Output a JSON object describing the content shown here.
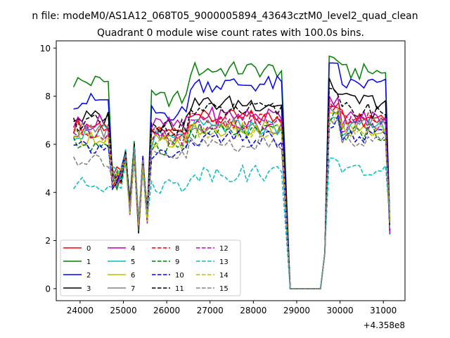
{
  "figure": {
    "title_line1": "n file: modeM0/AS1A12_068T05_9000005894_43643cztM0_level2_quad_clean",
    "title_line2": "Quadrant 0 module wise count rates with 100.0s bins.",
    "offset_text": "+4.358e8"
  },
  "chart_data": {
    "type": "line",
    "title": "Quadrant 0 module wise count rates with 100.0s bins.",
    "xlabel": "",
    "ylabel": "",
    "x_offset": 435800000,
    "xlim": [
      23450,
      31500
    ],
    "ylim": [
      -0.5,
      10.3
    ],
    "xticks": [
      24000,
      25000,
      26000,
      27000,
      28000,
      29000,
      30000,
      31000
    ],
    "yticks": [
      0,
      2,
      4,
      6,
      8,
      10
    ],
    "grid": false,
    "legend": {
      "placement": "lower-left",
      "columns": 4
    },
    "x_range_shown": [
      23850,
      31150
    ],
    "gap": [
      28750,
      29550
    ],
    "series": [
      {
        "name": "0",
        "color": "#ff0000",
        "style": "solid"
      },
      {
        "name": "1",
        "color": "#008000",
        "style": "solid"
      },
      {
        "name": "2",
        "color": "#0000ff",
        "style": "solid"
      },
      {
        "name": "3",
        "color": "#000000",
        "style": "solid"
      },
      {
        "name": "4",
        "color": "#bf00bf",
        "style": "solid"
      },
      {
        "name": "5",
        "color": "#00bfbf",
        "style": "solid"
      },
      {
        "name": "6",
        "color": "#bfbf00",
        "style": "solid"
      },
      {
        "name": "7",
        "color": "#808080",
        "style": "solid"
      },
      {
        "name": "8",
        "color": "#ff0000",
        "style": "dashed"
      },
      {
        "name": "9",
        "color": "#008000",
        "style": "dashed"
      },
      {
        "name": "10",
        "color": "#0000ff",
        "style": "dashed"
      },
      {
        "name": "11",
        "color": "#000000",
        "style": "dashed"
      },
      {
        "name": "12",
        "color": "#bf00bf",
        "style": "dashed"
      },
      {
        "name": "13",
        "color": "#00bfbf",
        "style": "dashed"
      },
      {
        "name": "14",
        "color": "#bfbf00",
        "style": "dashed"
      },
      {
        "name": "15",
        "color": "#808080",
        "style": "dashed"
      }
    ],
    "series_levels": [
      {
        "name": "0",
        "a": 6.8,
        "b": 6.5,
        "c": 7.1,
        "d": 7.2
      },
      {
        "name": "1",
        "a": 8.6,
        "b": 7.9,
        "c": 9.1,
        "d": 9.0
      },
      {
        "name": "2",
        "a": 7.8,
        "b": 7.3,
        "c": 8.5,
        "d": 8.5
      },
      {
        "name": "3",
        "a": 7.1,
        "b": 6.8,
        "c": 7.7,
        "d": 7.8
      },
      {
        "name": "4",
        "a": 6.9,
        "b": 6.8,
        "c": 7.2,
        "d": 7.1
      },
      {
        "name": "5",
        "a": 6.5,
        "b": 6.2,
        "c": 6.7,
        "d": 6.7
      },
      {
        "name": "6",
        "a": 6.3,
        "b": 6.1,
        "c": 6.6,
        "d": 6.6
      },
      {
        "name": "7",
        "a": 6.6,
        "b": 6.4,
        "c": 6.8,
        "d": 6.8
      },
      {
        "name": "8",
        "a": 6.6,
        "b": 6.4,
        "c": 7.0,
        "d": 7.0
      },
      {
        "name": "9",
        "a": 6.0,
        "b": 5.9,
        "c": 6.5,
        "d": 6.5
      },
      {
        "name": "10",
        "a": 5.8,
        "b": 5.6,
        "c": 6.2,
        "d": 6.3
      },
      {
        "name": "11",
        "a": 6.9,
        "b": 6.7,
        "c": 7.4,
        "d": 7.4
      },
      {
        "name": "12",
        "a": 6.5,
        "b": 6.3,
        "c": 6.8,
        "d": 6.8
      },
      {
        "name": "13",
        "a": 4.3,
        "b": 4.3,
        "c": 4.8,
        "d": 4.9
      },
      {
        "name": "14",
        "a": 6.3,
        "b": 6.2,
        "c": 6.6,
        "d": 6.6
      },
      {
        "name": "15",
        "a": 5.4,
        "b": 5.5,
        "c": 6.0,
        "d": 6.2
      }
    ]
  }
}
